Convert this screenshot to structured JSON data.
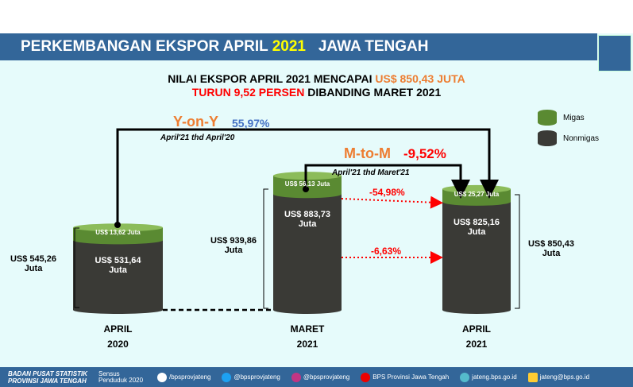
{
  "header": {
    "title_prefix": "PERKEMBANGAN EKSPOR APRIL ",
    "title_year": "2021",
    "title_suffix": "JAWA TENGAH",
    "logo_text": "Sensus"
  },
  "headline": {
    "line1_black": "NILAI EKSPOR APRIL 2021 MENCAPAI ",
    "line1_orange": "US$ 850,43 JUTA",
    "line2_red": "TURUN 9,52 PERSEN",
    "line2_black": " DIBANDING MARET 2021"
  },
  "legend": [
    {
      "label": "Migas",
      "color": "#5a8a32"
    },
    {
      "label": "Nonmigas",
      "color": "#3a3a36"
    }
  ],
  "yoy": {
    "label": "Y-on-Y",
    "value": "55,97%",
    "sub": "April'21 thd April'20"
  },
  "mtm": {
    "label": "M-to-M",
    "value": "-9,52%",
    "sub": "April'21 thd Maret'21"
  },
  "changes": {
    "migas": "-54,98%",
    "nonmigas": "-6,63%"
  },
  "chart_data": {
    "type": "bar",
    "stacked": true,
    "categories": [
      "APRIL 2020",
      "MARET 2021",
      "APRIL 2021"
    ],
    "unit": "US$ Juta",
    "series": [
      {
        "name": "Nonmigas",
        "values": [
          531.64,
          883.73,
          825.16
        ]
      },
      {
        "name": "Migas",
        "values": [
          13.62,
          56.13,
          25.27
        ]
      }
    ],
    "totals": [
      545.26,
      939.86,
      850.43
    ]
  },
  "bars": [
    {
      "cat1": "APRIL",
      "cat2": "2020",
      "total": "US$ 545,26",
      "total2": "Juta",
      "non": "US$ 531,64",
      "non2": "Juta",
      "mig": "US$ 13,62 Juta"
    },
    {
      "cat1": "MARET",
      "cat2": "2021",
      "total": "US$ 939,86",
      "total2": "Juta",
      "non": "US$ 883,73",
      "non2": "Juta",
      "mig": "US$ 56,13 Juta"
    },
    {
      "cat1": "APRIL",
      "cat2": "2021",
      "total": "US$ 850,43",
      "total2": "Juta",
      "non": "US$ 825,16",
      "non2": "Juta",
      "mig": "US$ 25,27 Juta"
    }
  ],
  "footer": {
    "org1": "BADAN PUSAT STATISTIK",
    "org2": "PROVINSI JAWA TENGAH",
    "census": "Sensus Penduduk 2020",
    "facebook": "/bpsprovjateng",
    "twitter": "@bpsprovjateng",
    "instagram": "@bpsprovjateng",
    "youtube": "BPS Provinsi Jawa Tengah",
    "web": "jateng.bps.go.id",
    "email": "jateng@bps.go.id"
  }
}
